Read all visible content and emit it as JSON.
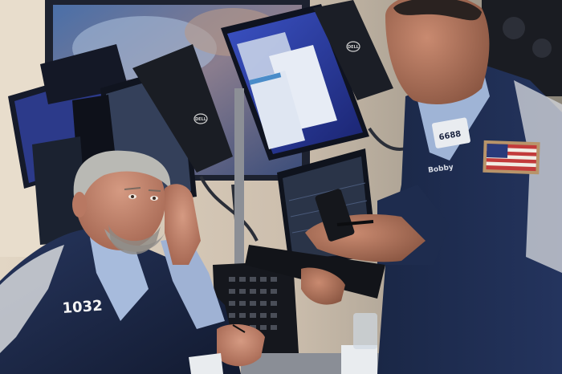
{
  "photo": {
    "left_trader_badge": "1032",
    "right_trader_badge": "6688",
    "right_trader_name_tag": "Bobby",
    "monitor_brand": "DELL",
    "colors": {
      "jacket_navy": "#1c2a4a",
      "shirt_blue": "#9fb4d6",
      "screen_blue": "#2a3fa0",
      "skin": "#c58a72",
      "hair_grey": "#b9b9b4",
      "background_wall": "#d8cbb8"
    }
  }
}
